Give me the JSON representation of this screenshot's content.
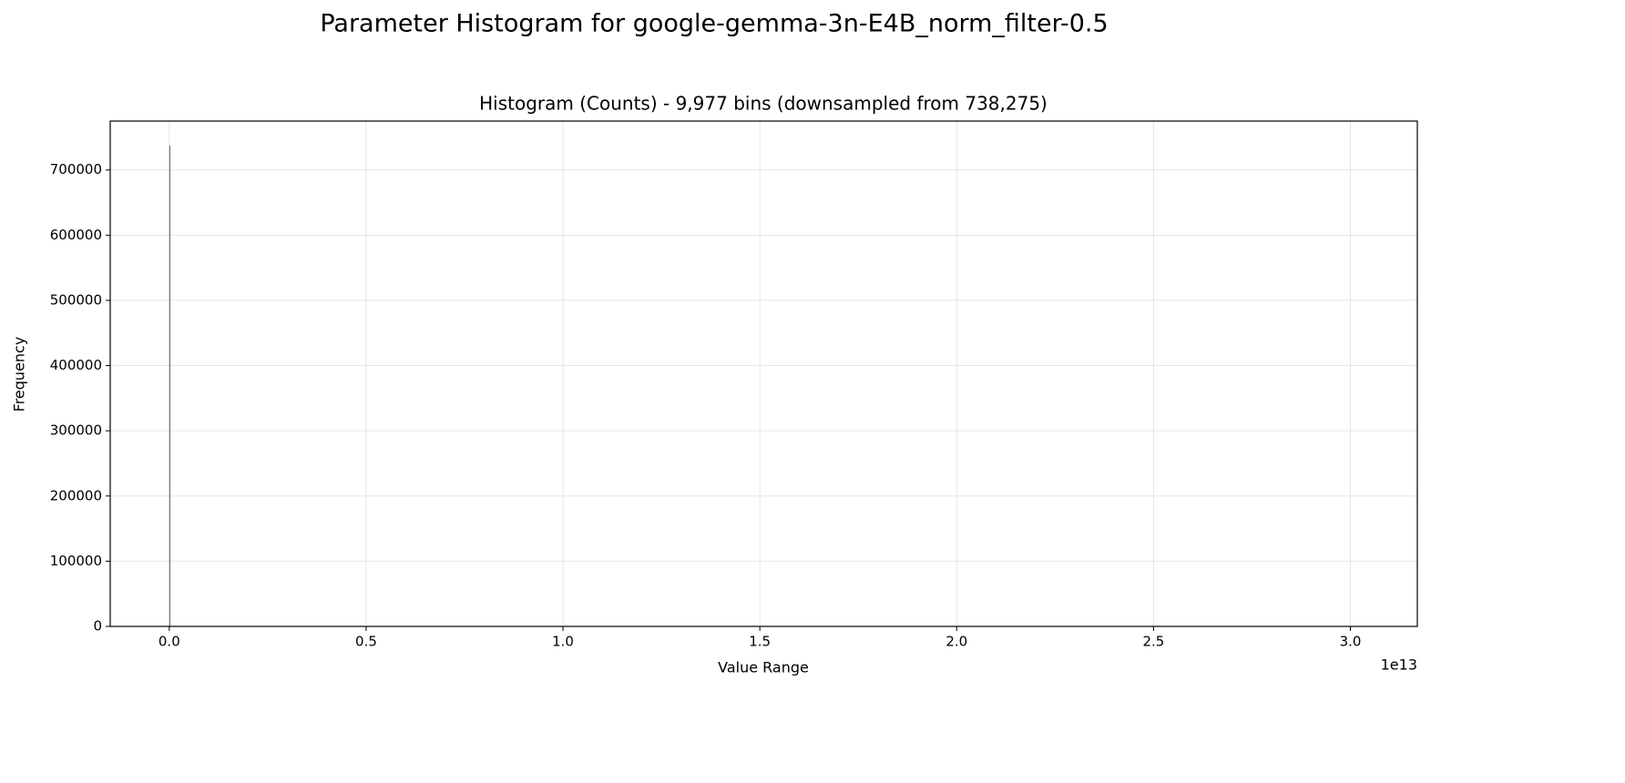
{
  "chart_data": {
    "type": "histogram",
    "title": "Parameter Histogram for google-gemma-3n-E4B_norm_filter-0.5",
    "subtitle": "Histogram (Counts) - 9,977 bins (downsampled from 738,275)",
    "x_label": "Value Range",
    "y_label": "Frequency",
    "x_offset_label": "1e13",
    "bins": [
      0,
      0.0003,
      3.02
    ],
    "counts": [
      737700,
      0
    ],
    "color": "#555555",
    "xlim": [
      -0.15,
      3.17
    ],
    "xticks": [
      {
        "value": 0,
        "label": "0.0"
      },
      0.5,
      {
        "value": 1,
        "label": "1.0"
      },
      1.5,
      {
        "value": 2,
        "label": "2.0"
      },
      2.5,
      {
        "value": 3,
        "label": "3.0"
      }
    ],
    "ylim": [
      0,
      775000
    ],
    "yticks": [
      0,
      100000,
      200000,
      300000,
      400000,
      500000,
      600000,
      700000
    ],
    "grid": true
  }
}
